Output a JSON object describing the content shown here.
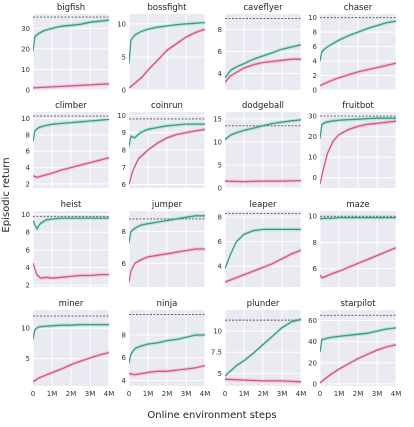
{
  "figure": {
    "xlabel": "Online environment steps",
    "ylabel": "Episodic return",
    "x_tick_labels": [
      "0",
      "1M",
      "2M",
      "3M",
      "4M"
    ],
    "colors": {
      "green": "#2aa673",
      "pink": "#e0507e",
      "reference": "#555555",
      "panel": "#eaeaf2",
      "grid": "#ffffff"
    }
  },
  "chart_data": [
    {
      "type": "line",
      "title": "bigfish",
      "xlim": [
        0,
        4
      ],
      "ylim": [
        0,
        37
      ],
      "yticks": [
        0,
        10,
        20,
        30
      ],
      "ref": 35.5,
      "series": [
        {
          "color": "green",
          "x": [
            0,
            0.1,
            0.3,
            0.6,
            1,
            1.5,
            2,
            2.5,
            3,
            3.5,
            4
          ],
          "y": [
            19,
            26,
            27.5,
            29,
            30,
            31,
            31.5,
            32,
            33,
            33.5,
            34
          ]
        },
        {
          "color": "pink",
          "x": [
            0,
            1,
            2,
            3,
            4
          ],
          "y": [
            1,
            1.5,
            2,
            2.5,
            3
          ]
        }
      ]
    },
    {
      "type": "line",
      "title": "bossfight",
      "xlim": [
        0,
        4
      ],
      "ylim": [
        0,
        11.5
      ],
      "yticks": [
        0,
        5,
        10
      ],
      "ref": null,
      "series": [
        {
          "color": "green",
          "x": [
            0,
            0.1,
            0.3,
            0.6,
            1,
            1.5,
            2,
            2.5,
            3,
            3.5,
            4
          ],
          "y": [
            4,
            7.5,
            8.3,
            8.8,
            9.2,
            9.5,
            9.7,
            9.9,
            10,
            10.1,
            10.2
          ]
        },
        {
          "color": "pink",
          "x": [
            0,
            0.3,
            0.7,
            1,
            1.5,
            2,
            2.5,
            3,
            3.5,
            4
          ],
          "y": [
            0.3,
            1,
            2,
            3,
            4.5,
            6,
            7,
            8,
            8.7,
            9.2
          ]
        }
      ]
    },
    {
      "type": "line",
      "title": "caveflyer",
      "xlim": [
        0,
        4
      ],
      "ylim": [
        2.5,
        9.4
      ],
      "yticks": [
        4,
        6,
        8
      ],
      "ref": 9,
      "series": [
        {
          "color": "green",
          "x": [
            0,
            0.3,
            0.6,
            1,
            1.5,
            2,
            2.5,
            3,
            3.5,
            4
          ],
          "y": [
            3.6,
            4.3,
            4.6,
            4.9,
            5.3,
            5.6,
            5.9,
            6.2,
            6.4,
            6.6
          ]
        },
        {
          "color": "pink",
          "x": [
            0,
            0.3,
            0.7,
            1,
            1.5,
            2,
            2.5,
            3,
            3.5,
            4
          ],
          "y": [
            3.2,
            3.8,
            4.2,
            4.5,
            4.8,
            5,
            5.1,
            5.2,
            5.3,
            5.3
          ]
        }
      ]
    },
    {
      "type": "line",
      "title": "chaser",
      "xlim": [
        0,
        4
      ],
      "ylim": [
        0,
        10.5
      ],
      "yticks": [
        0,
        2,
        4,
        6,
        8,
        10
      ],
      "ref": 10,
      "series": [
        {
          "color": "green",
          "x": [
            0,
            0.1,
            0.3,
            0.6,
            1,
            1.5,
            2,
            2.5,
            3,
            3.5,
            4
          ],
          "y": [
            4,
            5.3,
            5.8,
            6.3,
            6.9,
            7.5,
            8,
            8.5,
            8.9,
            9.3,
            9.5
          ]
        },
        {
          "color": "pink",
          "x": [
            0,
            0.5,
            1,
            1.5,
            2,
            2.5,
            3,
            3.5,
            4
          ],
          "y": [
            0.6,
            1.2,
            1.7,
            2.1,
            2.5,
            2.8,
            3.1,
            3.4,
            3.7
          ]
        }
      ]
    },
    {
      "type": "line",
      "title": "climber",
      "xlim": [
        0,
        4
      ],
      "ylim": [
        1.5,
        10.8
      ],
      "yticks": [
        2,
        4,
        6,
        8,
        10
      ],
      "ref": 10.3,
      "series": [
        {
          "color": "green",
          "x": [
            0,
            0.1,
            0.3,
            0.6,
            1,
            1.5,
            2,
            2.5,
            3,
            3.5,
            4
          ],
          "y": [
            7.2,
            8.5,
            8.9,
            9.1,
            9.3,
            9.4,
            9.5,
            9.6,
            9.7,
            9.8,
            9.9
          ]
        },
        {
          "color": "pink",
          "x": [
            0,
            0.2,
            0.5,
            1,
            1.5,
            2,
            2.5,
            3,
            3.5,
            4
          ],
          "y": [
            3,
            2.8,
            3,
            3.3,
            3.7,
            4,
            4.3,
            4.6,
            4.9,
            5.2
          ]
        }
      ]
    },
    {
      "type": "line",
      "title": "coinrun",
      "xlim": [
        0,
        4
      ],
      "ylim": [
        5.8,
        10.2
      ],
      "yticks": [
        6,
        7,
        8,
        9,
        10
      ],
      "ref": 9.8,
      "series": [
        {
          "color": "green",
          "x": [
            0,
            0.1,
            0.3,
            0.6,
            1,
            1.5,
            2,
            2.5,
            3,
            3.5,
            4
          ],
          "y": [
            8.2,
            8.8,
            8.7,
            9,
            9.2,
            9.3,
            9.4,
            9.45,
            9.5,
            9.5,
            9.5
          ]
        },
        {
          "color": "pink",
          "x": [
            0,
            0.2,
            0.5,
            1,
            1.5,
            2,
            2.5,
            3,
            3.5,
            4
          ],
          "y": [
            6,
            6.8,
            7.5,
            8,
            8.4,
            8.7,
            8.9,
            9,
            9.1,
            9.2
          ]
        }
      ]
    },
    {
      "type": "line",
      "title": "dodgeball",
      "xlim": [
        0,
        4
      ],
      "ylim": [
        0,
        16.5
      ],
      "yticks": [
        0,
        5,
        10,
        15
      ],
      "ref": 13.5,
      "series": [
        {
          "color": "green",
          "x": [
            0,
            0.3,
            0.6,
            1,
            1.5,
            2,
            2.5,
            3,
            3.5,
            4
          ],
          "y": [
            10.5,
            11.5,
            12,
            12.5,
            13,
            13.5,
            14,
            14.3,
            14.6,
            14.8
          ]
        },
        {
          "color": "pink",
          "x": [
            0,
            1,
            2,
            3,
            4
          ],
          "y": [
            1.5,
            1.4,
            1.5,
            1.5,
            1.6
          ]
        }
      ]
    },
    {
      "type": "line",
      "title": "fruitbot",
      "xlim": [
        0,
        4
      ],
      "ylim": [
        -5,
        32
      ],
      "yticks": [
        0,
        10,
        20,
        30
      ],
      "ref": 30,
      "series": [
        {
          "color": "green",
          "x": [
            0,
            0.1,
            0.3,
            0.6,
            1,
            1.5,
            2,
            2.5,
            3,
            3.5,
            4
          ],
          "y": [
            19,
            26,
            27,
            27.5,
            28,
            28.3,
            28.5,
            28.8,
            29,
            29,
            29
          ]
        },
        {
          "color": "pink",
          "x": [
            0,
            0.2,
            0.4,
            0.7,
            1,
            1.5,
            2,
            2.5,
            3,
            3.5,
            4
          ],
          "y": [
            -3,
            5,
            12,
            18,
            21,
            23.5,
            25,
            26,
            26.5,
            27,
            27.5
          ]
        }
      ]
    },
    {
      "type": "line",
      "title": "heist",
      "xlim": [
        0,
        4
      ],
      "ylim": [
        1.8,
        10.4
      ],
      "yticks": [
        2,
        4,
        6,
        8,
        10
      ],
      "ref": 9.8,
      "series": [
        {
          "color": "green",
          "x": [
            0,
            0.2,
            0.4,
            0.7,
            1,
            1.5,
            2,
            2.5,
            3,
            3.5,
            4
          ],
          "y": [
            9.3,
            8.4,
            9,
            9.4,
            9.5,
            9.6,
            9.6,
            9.6,
            9.6,
            9.6,
            9.6
          ]
        },
        {
          "color": "pink",
          "x": [
            0,
            0.2,
            0.4,
            0.7,
            1,
            1.5,
            2,
            2.5,
            3,
            3.5,
            4
          ],
          "y": [
            4.5,
            3.2,
            2.8,
            2.9,
            2.8,
            2.9,
            3,
            3.1,
            3.1,
            3.2,
            3.2
          ]
        }
      ]
    },
    {
      "type": "line",
      "title": "jumper",
      "xlim": [
        0,
        4
      ],
      "ylim": [
        4.5,
        9.3
      ],
      "yticks": [
        6,
        8
      ],
      "ref": 8.8,
      "series": [
        {
          "color": "green",
          "x": [
            0,
            0.1,
            0.3,
            0.6,
            1,
            1.5,
            2,
            2.5,
            3,
            3.5,
            4
          ],
          "y": [
            7.3,
            8,
            8.2,
            8.4,
            8.5,
            8.6,
            8.7,
            8.8,
            8.9,
            9,
            9
          ]
        },
        {
          "color": "pink",
          "x": [
            0,
            0.1,
            0.3,
            0.6,
            1,
            1.5,
            2,
            2.5,
            3,
            3.5,
            4
          ],
          "y": [
            4.8,
            5.5,
            6,
            6.2,
            6.4,
            6.5,
            6.6,
            6.7,
            6.8,
            6.9,
            6.9
          ]
        }
      ]
    },
    {
      "type": "line",
      "title": "leaper",
      "xlim": [
        0,
        4
      ],
      "ylim": [
        2.3,
        8.5
      ],
      "yticks": [
        4,
        6,
        8
      ],
      "ref": 8.3,
      "series": [
        {
          "color": "green",
          "x": [
            0,
            0.3,
            0.6,
            1,
            1.5,
            2,
            2.5,
            3,
            3.5,
            4
          ],
          "y": [
            3.8,
            5,
            6,
            6.6,
            6.9,
            7,
            7,
            7,
            7,
            7
          ]
        },
        {
          "color": "pink",
          "x": [
            0,
            0.5,
            1,
            1.5,
            2,
            2.5,
            3,
            3.5,
            4
          ],
          "y": [
            2.7,
            3,
            3.3,
            3.6,
            3.9,
            4.2,
            4.6,
            5,
            5.3
          ]
        }
      ]
    },
    {
      "type": "line",
      "title": "maze",
      "xlim": [
        0,
        4
      ],
      "ylim": [
        4.6,
        10.4
      ],
      "yticks": [
        6,
        8,
        10
      ],
      "ref": 10,
      "series": [
        {
          "color": "green",
          "x": [
            0,
            0.2,
            0.6,
            1,
            2,
            3,
            4
          ],
          "y": [
            9.8,
            9.85,
            9.85,
            9.9,
            9.9,
            9.9,
            9.9
          ]
        },
        {
          "color": "pink",
          "x": [
            0,
            0.1,
            0.3,
            0.6,
            1,
            1.5,
            2,
            2.5,
            3,
            3.5,
            4
          ],
          "y": [
            5.5,
            5.3,
            5.4,
            5.6,
            5.8,
            6.1,
            6.4,
            6.7,
            7,
            7.3,
            7.6
          ]
        }
      ]
    },
    {
      "type": "line",
      "title": "miner",
      "xlim": [
        0,
        4
      ],
      "ylim": [
        0.5,
        13
      ],
      "yticks": [
        5,
        10
      ],
      "ref": 12,
      "series": [
        {
          "color": "green",
          "x": [
            0,
            0.1,
            0.3,
            0.6,
            1,
            1.5,
            2,
            2.5,
            3,
            3.5,
            4
          ],
          "y": [
            8.2,
            9.8,
            10.2,
            10.3,
            10.4,
            10.5,
            10.5,
            10.6,
            10.6,
            10.6,
            10.6
          ]
        },
        {
          "color": "pink",
          "x": [
            0,
            0.3,
            0.6,
            1,
            1.5,
            2,
            2.5,
            3,
            3.5,
            4
          ],
          "y": [
            1.2,
            1.8,
            2.2,
            2.7,
            3.3,
            4,
            4.6,
            5.1,
            5.6,
            6
          ]
        }
      ]
    },
    {
      "type": "line",
      "title": "ninja",
      "xlim": [
        0,
        4
      ],
      "ylim": [
        3.5,
        10.2
      ],
      "yticks": [
        4,
        6,
        8
      ],
      "ref": 9.8,
      "series": [
        {
          "color": "green",
          "x": [
            0,
            0.1,
            0.3,
            0.6,
            1,
            1.5,
            2,
            2.5,
            3,
            3.5,
            4
          ],
          "y": [
            5.5,
            6.3,
            6.8,
            7,
            7.2,
            7.3,
            7.5,
            7.6,
            7.8,
            8,
            8
          ]
        },
        {
          "color": "pink",
          "x": [
            0,
            0.3,
            0.7,
            1,
            1.5,
            2,
            2.5,
            3,
            3.5,
            4
          ],
          "y": [
            4.6,
            4.5,
            4.6,
            4.7,
            4.8,
            4.8,
            4.9,
            5,
            5.1,
            5.3
          ]
        }
      ]
    },
    {
      "type": "line",
      "title": "plunder",
      "xlim": [
        0,
        4
      ],
      "ylim": [
        3.5,
        12.5
      ],
      "yticks": [
        5,
        7.5,
        10
      ],
      "ref": 11.3,
      "series": [
        {
          "color": "green",
          "x": [
            0,
            0.3,
            0.6,
            1,
            1.5,
            2,
            2.5,
            3,
            3.5,
            4
          ],
          "y": [
            4.7,
            5.3,
            5.9,
            6.5,
            7.4,
            8.4,
            9.4,
            10.4,
            11.1,
            11.4
          ]
        },
        {
          "color": "pink",
          "x": [
            0,
            1,
            2,
            3,
            4
          ],
          "y": [
            4.3,
            4.2,
            4.1,
            4.1,
            4
          ]
        }
      ]
    },
    {
      "type": "line",
      "title": "starpilot",
      "xlim": [
        0,
        4
      ],
      "ylim": [
        -2,
        70
      ],
      "yticks": [
        0,
        20,
        40,
        60
      ],
      "ref": 65,
      "series": [
        {
          "color": "green",
          "x": [
            0,
            0.1,
            0.3,
            0.6,
            1,
            1.5,
            2,
            2.5,
            3,
            3.5,
            4
          ],
          "y": [
            30,
            42,
            43,
            44,
            45,
            46,
            47,
            48,
            50,
            52,
            53
          ]
        },
        {
          "color": "pink",
          "x": [
            0,
            0.2,
            0.5,
            1,
            1.5,
            2,
            2.5,
            3,
            3.5,
            4
          ],
          "y": [
            1,
            4,
            8,
            14,
            19,
            24,
            28,
            32,
            35,
            37
          ]
        }
      ]
    }
  ]
}
